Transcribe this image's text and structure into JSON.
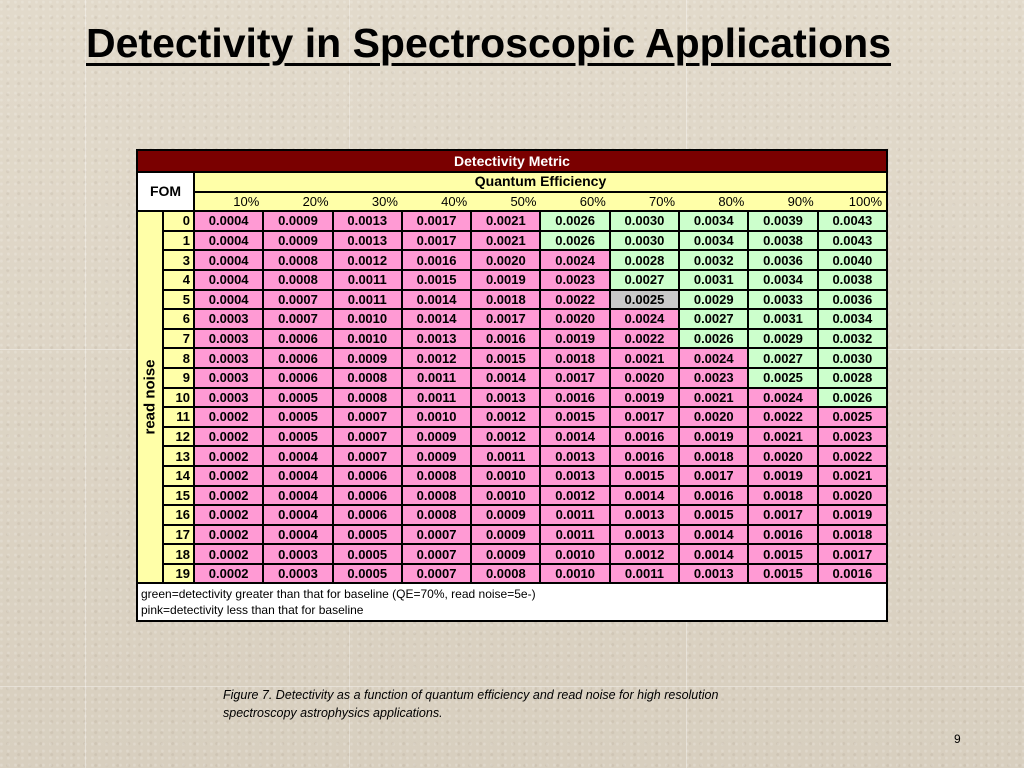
{
  "slide": {
    "title": "Detectivity in Spectroscopic Applications",
    "caption": "Figure 7. Detectivity as a function of quantum efficiency and read noise for high resolution spectroscopy astrophysics applications.",
    "page_number": "9"
  },
  "table": {
    "header": "Detectivity Metric",
    "fom_label": "FOM",
    "qe_label": "Quantum Efficiency",
    "read_noise_label": "read noise",
    "qe_columns": [
      "10%",
      "20%",
      "30%",
      "40%",
      "50%",
      "60%",
      "70%",
      "80%",
      "90%",
      "100%"
    ],
    "rows": [
      {
        "rn": "0",
        "values": [
          "0.0004",
          "0.0009",
          "0.0013",
          "0.0017",
          "0.0021",
          "0.0026",
          "0.0030",
          "0.0034",
          "0.0039",
          "0.0043"
        ],
        "colors": [
          "p",
          "p",
          "p",
          "p",
          "p",
          "g",
          "g",
          "g",
          "g",
          "g"
        ]
      },
      {
        "rn": "1",
        "values": [
          "0.0004",
          "0.0009",
          "0.0013",
          "0.0017",
          "0.0021",
          "0.0026",
          "0.0030",
          "0.0034",
          "0.0038",
          "0.0043"
        ],
        "colors": [
          "p",
          "p",
          "p",
          "p",
          "p",
          "g",
          "g",
          "g",
          "g",
          "g"
        ]
      },
      {
        "rn": "3",
        "values": [
          "0.0004",
          "0.0008",
          "0.0012",
          "0.0016",
          "0.0020",
          "0.0024",
          "0.0028",
          "0.0032",
          "0.0036",
          "0.0040"
        ],
        "colors": [
          "p",
          "p",
          "p",
          "p",
          "p",
          "p",
          "g",
          "g",
          "g",
          "g"
        ]
      },
      {
        "rn": "4",
        "values": [
          "0.0004",
          "0.0008",
          "0.0011",
          "0.0015",
          "0.0019",
          "0.0023",
          "0.0027",
          "0.0031",
          "0.0034",
          "0.0038"
        ],
        "colors": [
          "p",
          "p",
          "p",
          "p",
          "p",
          "p",
          "g",
          "g",
          "g",
          "g"
        ]
      },
      {
        "rn": "5",
        "values": [
          "0.0004",
          "0.0007",
          "0.0011",
          "0.0014",
          "0.0018",
          "0.0022",
          "0.0025",
          "0.0029",
          "0.0033",
          "0.0036"
        ],
        "colors": [
          "p",
          "p",
          "p",
          "p",
          "p",
          "p",
          "n",
          "g",
          "g",
          "g"
        ]
      },
      {
        "rn": "6",
        "values": [
          "0.0003",
          "0.0007",
          "0.0010",
          "0.0014",
          "0.0017",
          "0.0020",
          "0.0024",
          "0.0027",
          "0.0031",
          "0.0034"
        ],
        "colors": [
          "p",
          "p",
          "p",
          "p",
          "p",
          "p",
          "p",
          "g",
          "g",
          "g"
        ]
      },
      {
        "rn": "7",
        "values": [
          "0.0003",
          "0.0006",
          "0.0010",
          "0.0013",
          "0.0016",
          "0.0019",
          "0.0022",
          "0.0026",
          "0.0029",
          "0.0032"
        ],
        "colors": [
          "p",
          "p",
          "p",
          "p",
          "p",
          "p",
          "p",
          "g",
          "g",
          "g"
        ]
      },
      {
        "rn": "8",
        "values": [
          "0.0003",
          "0.0006",
          "0.0009",
          "0.0012",
          "0.0015",
          "0.0018",
          "0.0021",
          "0.0024",
          "0.0027",
          "0.0030"
        ],
        "colors": [
          "p",
          "p",
          "p",
          "p",
          "p",
          "p",
          "p",
          "p",
          "g",
          "g"
        ]
      },
      {
        "rn": "9",
        "values": [
          "0.0003",
          "0.0006",
          "0.0008",
          "0.0011",
          "0.0014",
          "0.0017",
          "0.0020",
          "0.0023",
          "0.0025",
          "0.0028"
        ],
        "colors": [
          "p",
          "p",
          "p",
          "p",
          "p",
          "p",
          "p",
          "p",
          "g",
          "g"
        ]
      },
      {
        "rn": "10",
        "values": [
          "0.0003",
          "0.0005",
          "0.0008",
          "0.0011",
          "0.0013",
          "0.0016",
          "0.0019",
          "0.0021",
          "0.0024",
          "0.0026"
        ],
        "colors": [
          "p",
          "p",
          "p",
          "p",
          "p",
          "p",
          "p",
          "p",
          "p",
          "g"
        ]
      },
      {
        "rn": "11",
        "values": [
          "0.0002",
          "0.0005",
          "0.0007",
          "0.0010",
          "0.0012",
          "0.0015",
          "0.0017",
          "0.0020",
          "0.0022",
          "0.0025"
        ],
        "colors": [
          "p",
          "p",
          "p",
          "p",
          "p",
          "p",
          "p",
          "p",
          "p",
          "p"
        ]
      },
      {
        "rn": "12",
        "values": [
          "0.0002",
          "0.0005",
          "0.0007",
          "0.0009",
          "0.0012",
          "0.0014",
          "0.0016",
          "0.0019",
          "0.0021",
          "0.0023"
        ],
        "colors": [
          "p",
          "p",
          "p",
          "p",
          "p",
          "p",
          "p",
          "p",
          "p",
          "p"
        ]
      },
      {
        "rn": "13",
        "values": [
          "0.0002",
          "0.0004",
          "0.0007",
          "0.0009",
          "0.0011",
          "0.0013",
          "0.0016",
          "0.0018",
          "0.0020",
          "0.0022"
        ],
        "colors": [
          "p",
          "p",
          "p",
          "p",
          "p",
          "p",
          "p",
          "p",
          "p",
          "p"
        ]
      },
      {
        "rn": "14",
        "values": [
          "0.0002",
          "0.0004",
          "0.0006",
          "0.0008",
          "0.0010",
          "0.0013",
          "0.0015",
          "0.0017",
          "0.0019",
          "0.0021"
        ],
        "colors": [
          "p",
          "p",
          "p",
          "p",
          "p",
          "p",
          "p",
          "p",
          "p",
          "p"
        ]
      },
      {
        "rn": "15",
        "values": [
          "0.0002",
          "0.0004",
          "0.0006",
          "0.0008",
          "0.0010",
          "0.0012",
          "0.0014",
          "0.0016",
          "0.0018",
          "0.0020"
        ],
        "colors": [
          "p",
          "p",
          "p",
          "p",
          "p",
          "p",
          "p",
          "p",
          "p",
          "p"
        ]
      },
      {
        "rn": "16",
        "values": [
          "0.0002",
          "0.0004",
          "0.0006",
          "0.0008",
          "0.0009",
          "0.0011",
          "0.0013",
          "0.0015",
          "0.0017",
          "0.0019"
        ],
        "colors": [
          "p",
          "p",
          "p",
          "p",
          "p",
          "p",
          "p",
          "p",
          "p",
          "p"
        ]
      },
      {
        "rn": "17",
        "values": [
          "0.0002",
          "0.0004",
          "0.0005",
          "0.0007",
          "0.0009",
          "0.0011",
          "0.0013",
          "0.0014",
          "0.0016",
          "0.0018"
        ],
        "colors": [
          "p",
          "p",
          "p",
          "p",
          "p",
          "p",
          "p",
          "p",
          "p",
          "p"
        ]
      },
      {
        "rn": "18",
        "values": [
          "0.0002",
          "0.0003",
          "0.0005",
          "0.0007",
          "0.0009",
          "0.0010",
          "0.0012",
          "0.0014",
          "0.0015",
          "0.0017"
        ],
        "colors": [
          "p",
          "p",
          "p",
          "p",
          "p",
          "p",
          "p",
          "p",
          "p",
          "p"
        ]
      },
      {
        "rn": "19",
        "values": [
          "0.0002",
          "0.0003",
          "0.0005",
          "0.0007",
          "0.0008",
          "0.0010",
          "0.0011",
          "0.0013",
          "0.0015",
          "0.0016"
        ],
        "colors": [
          "p",
          "p",
          "p",
          "p",
          "p",
          "p",
          "p",
          "p",
          "p",
          "p"
        ]
      }
    ],
    "legend": [
      "green=detectivity greater than that for baseline (QE=70%, read noise=5e-)",
      "pink=detectivity less than that for baseline"
    ]
  },
  "colors": {
    "header_bg": "#7a0000",
    "qe_bg": "#ffffa8",
    "pink": "#ff9ad4",
    "green": "#ccffcc",
    "baseline": "#c8c8c8"
  }
}
